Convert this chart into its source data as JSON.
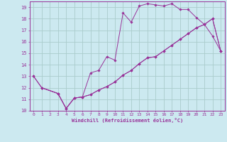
{
  "xlabel": "Windchill (Refroidissement éolien,°C)",
  "bg_color": "#cce9f0",
  "grid_color": "#aacccc",
  "line_color": "#993399",
  "xlim": [
    -0.5,
    23.5
  ],
  "ylim": [
    10,
    19.5
  ],
  "yticks": [
    10,
    11,
    12,
    13,
    14,
    15,
    16,
    17,
    18,
    19
  ],
  "xticks": [
    0,
    1,
    2,
    3,
    4,
    5,
    6,
    7,
    8,
    9,
    10,
    11,
    12,
    13,
    14,
    15,
    16,
    17,
    18,
    19,
    20,
    21,
    22,
    23
  ],
  "line1_x": [
    0,
    1,
    3,
    4,
    5,
    6,
    7,
    8,
    9,
    10,
    11,
    12,
    13,
    14,
    15,
    16,
    17,
    18,
    19,
    20,
    21,
    22,
    23
  ],
  "line1_y": [
    13,
    12,
    11.5,
    10.2,
    11.1,
    11.2,
    13.3,
    13.5,
    14.7,
    14.4,
    18.5,
    17.7,
    19.1,
    19.3,
    19.2,
    19.1,
    19.3,
    18.8,
    18.8,
    18.1,
    17.5,
    16.5,
    15.2
  ],
  "line2_x": [
    0,
    1,
    3,
    4,
    5,
    6,
    7,
    8,
    9,
    10,
    11,
    12,
    13,
    14,
    15,
    16,
    17,
    18,
    19,
    20,
    21,
    22,
    23
  ],
  "line2_y": [
    13,
    12,
    11.5,
    10.2,
    11.1,
    11.2,
    11.4,
    11.8,
    12.1,
    12.5,
    13.1,
    13.5,
    14.1,
    14.6,
    14.7,
    15.2,
    15.7,
    16.2,
    16.7,
    17.2,
    17.5,
    18.0,
    15.2
  ],
  "line3_x": [
    1,
    3,
    4,
    5,
    6,
    7,
    8,
    9,
    10,
    11,
    12,
    13,
    14,
    15,
    16,
    17,
    18,
    19,
    20,
    21,
    22,
    23
  ],
  "line3_y": [
    12,
    11.5,
    10.2,
    11.1,
    11.2,
    11.4,
    11.8,
    12.1,
    12.5,
    13.1,
    13.5,
    14.1,
    14.6,
    14.7,
    15.2,
    15.7,
    16.2,
    16.7,
    17.2,
    17.5,
    18.0,
    15.2
  ]
}
